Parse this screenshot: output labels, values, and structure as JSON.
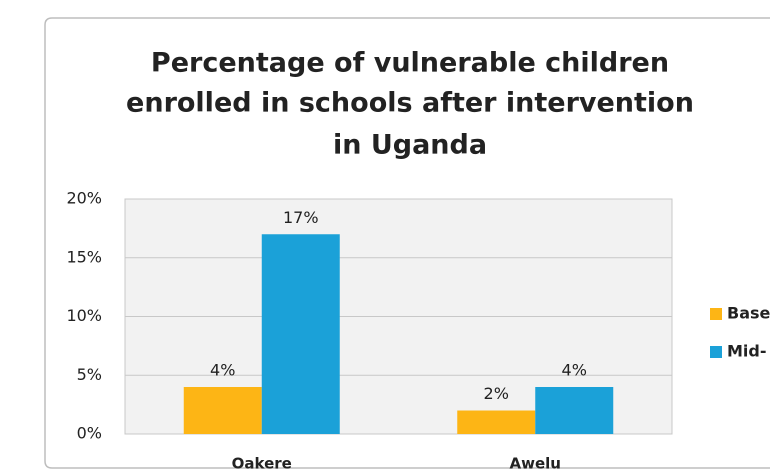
{
  "chart_data": {
    "type": "bar",
    "title": [
      "Percentage of vulnerable children",
      "enrolled in schools after intervention",
      "in Uganda"
    ],
    "categories": [
      "Oakere",
      "Awelu"
    ],
    "series": [
      {
        "name": "Base",
        "color": "#fdb515",
        "values": [
          4,
          2
        ],
        "value_labels": [
          "4%",
          "2%"
        ]
      },
      {
        "name": "Mid-",
        "color": "#1ba1d8",
        "values": [
          17,
          4
        ],
        "value_labels": [
          "17%",
          "4%"
        ]
      }
    ],
    "ylim": [
      0,
      20
    ],
    "yticks": [
      {
        "value": 0,
        "label": "0%"
      },
      {
        "value": 5,
        "label": "5%"
      },
      {
        "value": 10,
        "label": "10%"
      },
      {
        "value": 15,
        "label": "15%"
      },
      {
        "value": 20,
        "label": "20%"
      }
    ],
    "grid": true,
    "legend": "right"
  }
}
